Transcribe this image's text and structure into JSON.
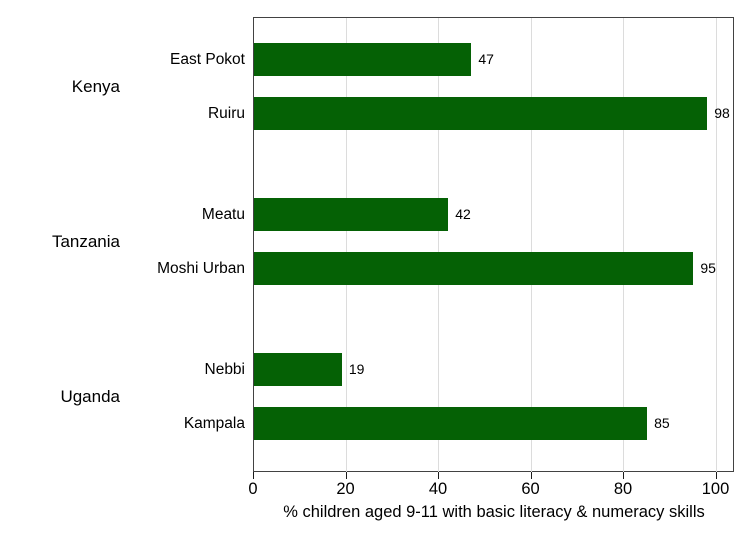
{
  "chart_data": {
    "type": "bar",
    "orientation": "horizontal",
    "title": "",
    "xlabel": "% children aged 9-11 with basic literacy & numeracy skills",
    "ylabel": "",
    "x_ticks": [
      0,
      20,
      40,
      60,
      80,
      100
    ],
    "xlim": [
      0,
      104
    ],
    "grid": true,
    "legend": false,
    "value_labels": true,
    "groups": [
      {
        "country": "Kenya",
        "districts": [
          {
            "label": "East Pokot",
            "value": 47
          },
          {
            "label": "Ruiru",
            "value": 98
          }
        ]
      },
      {
        "country": "Tanzania",
        "districts": [
          {
            "label": "Meatu",
            "value": 42
          },
          {
            "label": "Moshi Urban",
            "value": 95
          }
        ]
      },
      {
        "country": "Uganda",
        "districts": [
          {
            "label": "Nebbi",
            "value": 19
          },
          {
            "label": "Kampala",
            "value": 85
          }
        ]
      }
    ],
    "colors": {
      "bar": "#056105",
      "gridline": "#dcdcdc",
      "plot_border": "#424242",
      "tick": "#1a1a1a",
      "text": "#000000",
      "background": "#ffffff"
    }
  }
}
